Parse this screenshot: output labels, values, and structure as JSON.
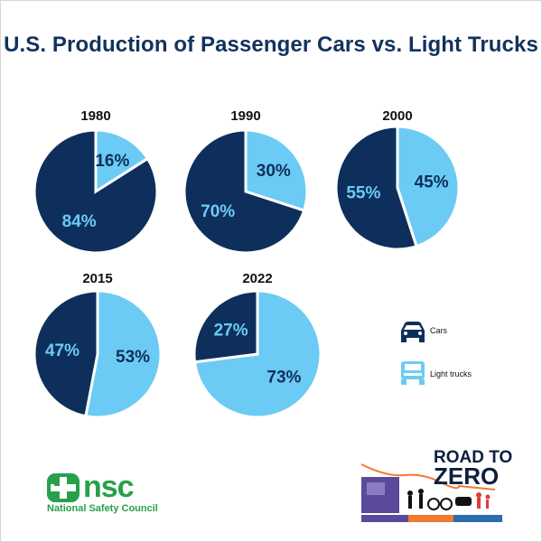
{
  "title": "U.S. Production of Passenger Cars vs. Light Trucks",
  "colors": {
    "cars": "#0e2f5c",
    "trucks": "#6ccbf4",
    "title": "#12325e",
    "nsc_green": "#27a04b"
  },
  "legend": [
    {
      "label": "Cars",
      "icon": "car-icon"
    },
    {
      "label": "Light trucks",
      "icon": "truck-icon"
    }
  ],
  "chart_data": {
    "type": "pie",
    "title": "U.S. Production of Passenger Cars vs. Light Trucks",
    "series_names": [
      "Cars",
      "Light trucks"
    ],
    "pies": [
      {
        "year": "1980",
        "values": [
          84,
          16
        ],
        "labels": [
          "84%",
          "16%"
        ]
      },
      {
        "year": "1990",
        "values": [
          70,
          30
        ],
        "labels": [
          "70%",
          "30%"
        ]
      },
      {
        "year": "2000",
        "values": [
          55,
          45
        ],
        "labels": [
          "55%",
          "45%"
        ]
      },
      {
        "year": "2015",
        "values": [
          47,
          53
        ],
        "labels": [
          "47%",
          "53%"
        ]
      },
      {
        "year": "2022",
        "values": [
          27,
          73
        ],
        "labels": [
          "27%",
          "73%"
        ]
      }
    ],
    "legend_position": "right"
  },
  "logos": {
    "nsc": {
      "name": "nsc",
      "subtitle": "National Safety Council"
    },
    "road_to_zero": {
      "line1": "ROAD TO",
      "line2": "ZERO"
    }
  }
}
